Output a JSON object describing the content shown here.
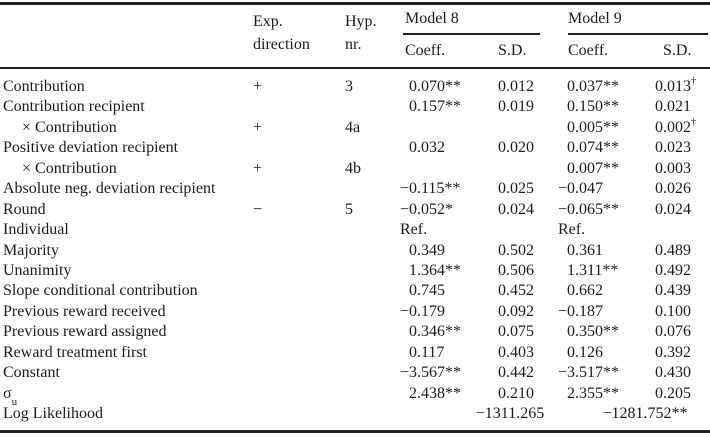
{
  "colors": {
    "background": "#ffffff",
    "text": "#1b1b1b",
    "rule": "#1f1f1f"
  },
  "header": {
    "exp_line1": "Exp.",
    "exp_line2": "direction",
    "hyp_line1": "Hyp.",
    "hyp_line2": "nr.",
    "model8": "Model 8",
    "model9": "Model 9",
    "m8_coeff": "Coeff.",
    "m8_sd": "S.D.",
    "m9_coeff": "Coeff.",
    "m9_sd": "S.D."
  },
  "rows": [
    {
      "label": "Contribution",
      "exp": "+",
      "hyp": "3",
      "m8c": "0.070**",
      "m8sd": "0.012",
      "m9c": "0.037**",
      "m9sd": "0.013†"
    },
    {
      "label": "Contribution recipient",
      "m8c": "0.157**",
      "m8sd": "0.019",
      "m9c": "0.150**",
      "m9sd": "0.021"
    },
    {
      "label": "× Contribution",
      "exp": "+",
      "hyp": "4a",
      "m9c": "0.005**",
      "m9sd": "0.002†"
    },
    {
      "label": "Positive deviation recipient",
      "m8c": "0.032",
      "m8sd": "0.020",
      "m9c": "0.074**",
      "m9sd": "0.023"
    },
    {
      "label": "× Contribution",
      "exp": "+",
      "hyp": "4b",
      "m9c": "0.007**",
      "m9sd": "0.003"
    },
    {
      "label": "Absolute neg. deviation recipient",
      "m8c": "−0.115**",
      "m8sd": "0.025",
      "m9c": "−0.047",
      "m9sd": "0.026"
    },
    {
      "label": "Round",
      "exp": "−",
      "hyp": "5",
      "m8c": "−0.052*",
      "m8sd": "0.024",
      "m9c": "−0.065**",
      "m9sd": "0.024"
    },
    {
      "label": "Individual",
      "m8c": "Ref.",
      "m9c": "Ref."
    },
    {
      "label": "Majority",
      "m8c": "0.349",
      "m8sd": "0.502",
      "m9c": "0.361",
      "m9sd": "0.489"
    },
    {
      "label": "Unanimity",
      "m8c": "1.364**",
      "m8sd": "0.506",
      "m9c": "1.311**",
      "m9sd": "0.492"
    },
    {
      "label": "Slope conditional contribution",
      "m8c": "0.745",
      "m8sd": "0.452",
      "m9c": "0.662",
      "m9sd": "0.439"
    },
    {
      "label": "Previous reward received",
      "m8c": "−0.179",
      "m8sd": "0.092",
      "m9c": "−0.187",
      "m9sd": "0.100"
    },
    {
      "label": "Previous reward assigned",
      "m8c": "0.346**",
      "m8sd": "0.075",
      "m9c": "0.350**",
      "m9sd": "0.076"
    },
    {
      "label": "Reward treatment first",
      "m8c": "0.117",
      "m8sd": "0.403",
      "m9c": "0.126",
      "m9sd": "0.392"
    },
    {
      "label": "Constant",
      "m8c": "−3.567**",
      "m8sd": "0.442",
      "m9c": "−3.517**",
      "m9sd": "0.430"
    },
    {
      "label": "σ_{u}",
      "m8c": "2.438**",
      "m8sd": "0.210",
      "m9c": "2.355**",
      "m9sd": "0.205"
    },
    {
      "label": "Log Likelihood",
      "m8ll": "−1311.265",
      "m9ll": "−1281.752**"
    }
  ]
}
